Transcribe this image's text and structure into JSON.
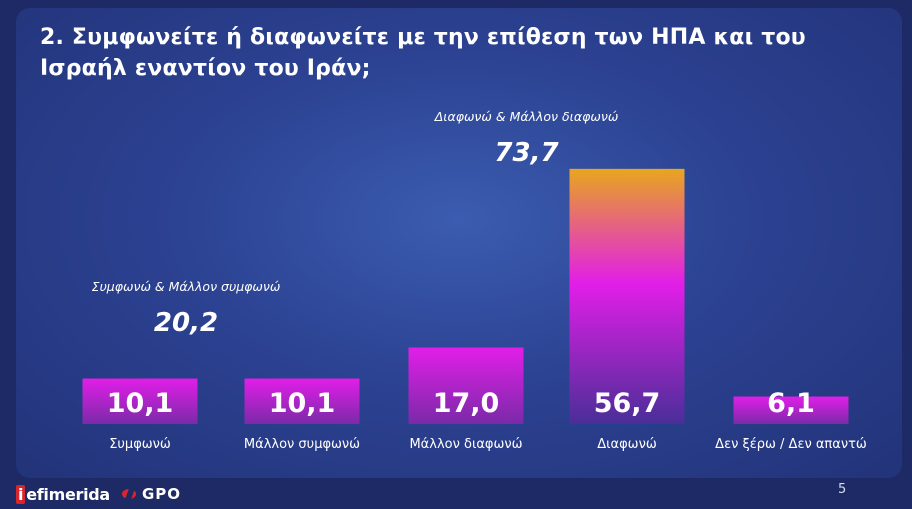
{
  "header": {
    "title": "2. Συμφωνείτε ή διαφωνείτε με την επίθεση των ΗΠΑ και του Ισραήλ εναντίον του Ιράν;"
  },
  "chart_data": {
    "type": "bar",
    "title": "2. Συμφωνείτε ή διαφωνείτε με την επίθεση των ΗΠΑ και του Ισραήλ εναντίον του Ιράν;",
    "categories": [
      "Συμφωνώ",
      "Μάλλον συμφωνώ",
      "Μάλλον διαφωνώ",
      "Διαφωνώ",
      "Δεν ξέρω / Δεν απαντώ"
    ],
    "values": [
      10.1,
      10.1,
      17.0,
      56.7,
      6.1
    ],
    "value_labels": [
      "10,1",
      "10,1",
      "17,0",
      "56,7",
      "6,1"
    ],
    "annotations": [
      {
        "label": "Συμφωνώ & Μάλλον συμφωνώ",
        "value": "20,2",
        "covers": [
          "Συμφωνώ",
          "Μάλλον συμφωνώ"
        ]
      },
      {
        "label": "Διαφωνώ & Μάλλον διαφωνώ",
        "value": "73,7",
        "covers": [
          "Μάλλον διαφωνώ",
          "Διαφωνώ"
        ]
      }
    ],
    "grid": false,
    "colors": {
      "bar_top": "#e21ee8",
      "bar_bottom": "#5a2ea0",
      "tall_bar_top": "#e8a61e"
    }
  },
  "footer": {
    "brand_left": "efimerida",
    "brand_left_initial": "i",
    "brand_right": "GPO",
    "page_number": "5"
  }
}
